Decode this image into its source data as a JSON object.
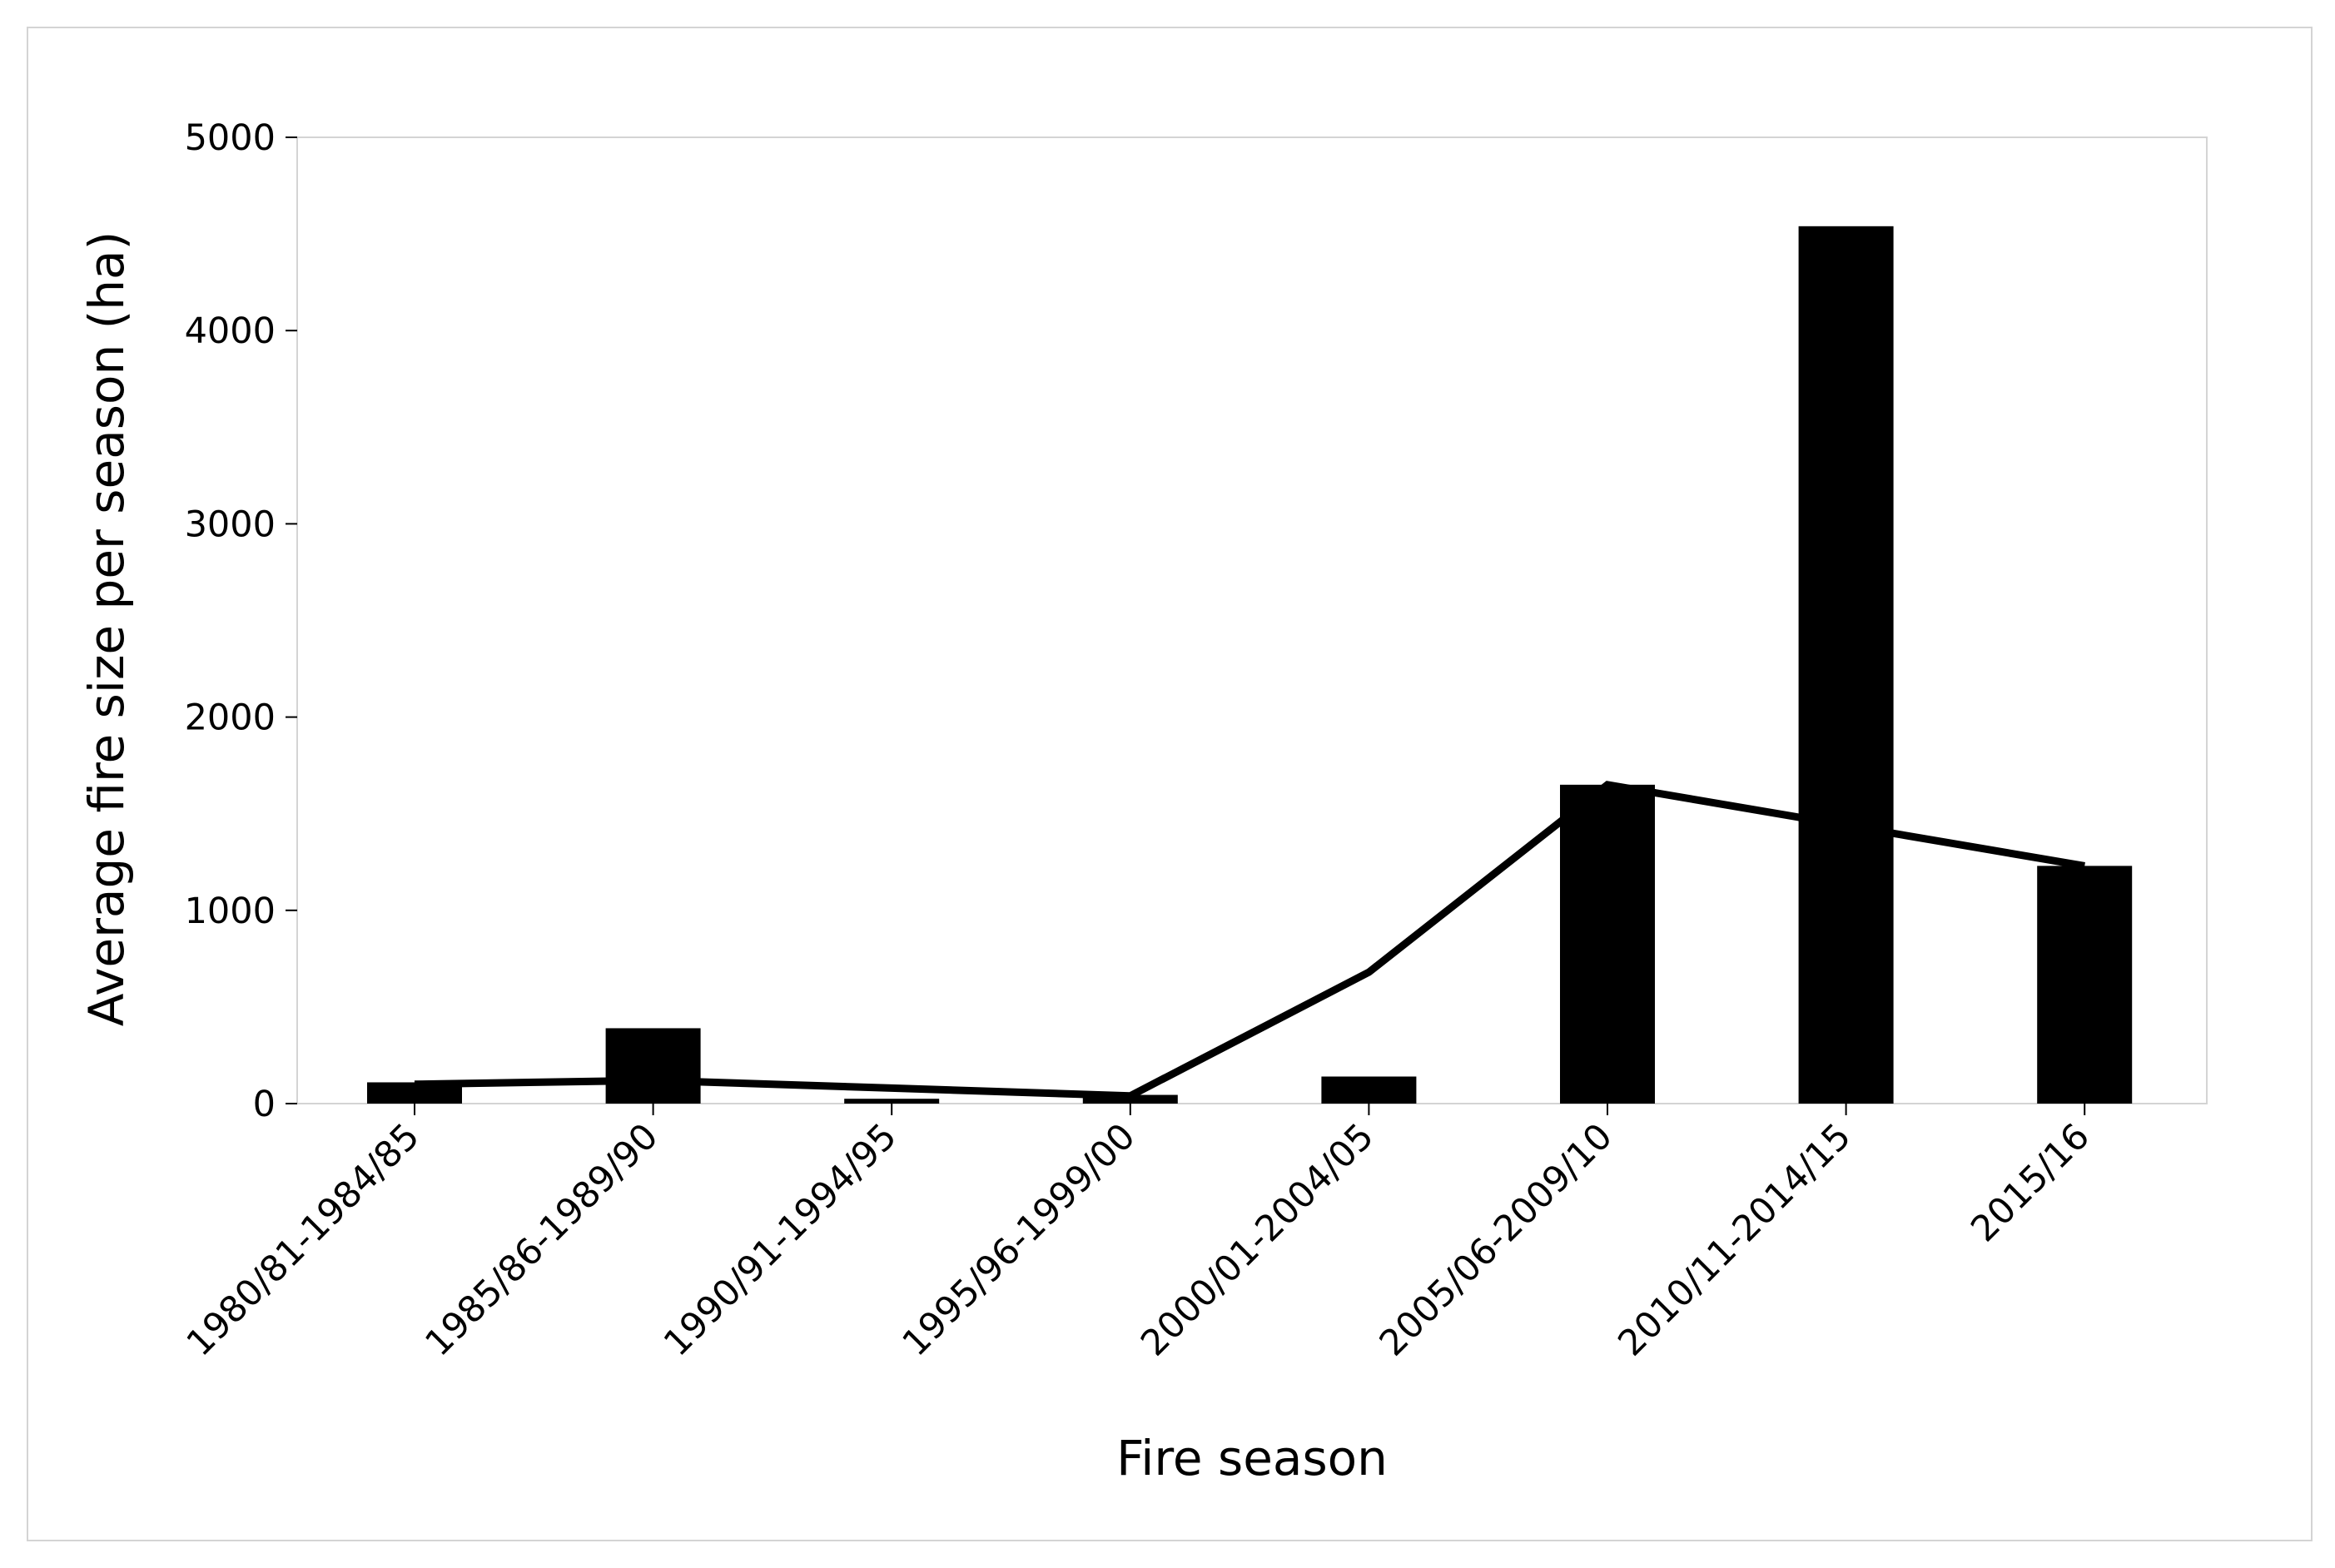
{
  "chart_data": {
    "type": "bar",
    "title": "",
    "xlabel": "Fire season",
    "ylabel": "Average fire size per season (ha)",
    "ylim": [
      0,
      5000
    ],
    "yticks": [
      0,
      1000,
      2000,
      3000,
      4000,
      5000
    ],
    "categories": [
      "1980/81-1984/85",
      "1985/86-1989/90",
      "1990/91-1994/95",
      "1995/96-1999/00",
      "2000/01-2004/05",
      "2005/06-2009/10",
      "2010/11-2014/15",
      "2015/16"
    ],
    "series": [
      {
        "type": "bar",
        "values": [
          110,
          390,
          25,
          45,
          140,
          1650,
          4540,
          1230
        ]
      },
      {
        "type": "line",
        "values": [
          100,
          120,
          80,
          40,
          680,
          1650,
          1440,
          1230
        ]
      }
    ],
    "grid": false,
    "legend": "none",
    "colors": {
      "bar": "#000000",
      "line": "#000000",
      "frame": "#d4d4d4"
    }
  }
}
